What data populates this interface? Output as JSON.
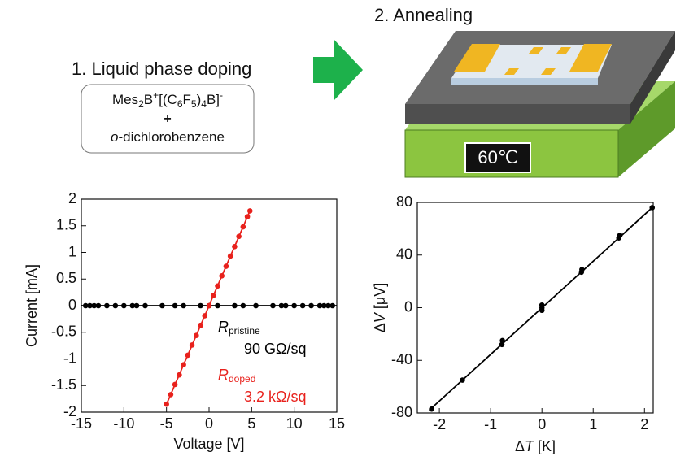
{
  "diagram": {
    "step1": "1. Liquid phase doping",
    "step2": "2. Annealing",
    "reagent": [
      "Mes",
      "2",
      "B",
      "+",
      "[(C",
      "6",
      "F",
      "5",
      ")",
      "4",
      "B]",
      "-"
    ],
    "plus": "+",
    "solvent": [
      "o",
      "-dichlorobenzene"
    ],
    "temperature": "60℃"
  },
  "chart_data": [
    {
      "type": "scatter",
      "xlabel": "Voltage [V]",
      "ylabel": "Current [mA]",
      "xlim": [
        -15,
        15
      ],
      "xticks": [
        -15,
        -10,
        -5,
        0,
        5,
        10,
        15
      ],
      "ylim": [
        -2,
        2
      ],
      "yticks": [
        -2,
        -1.5,
        -1,
        -0.5,
        0,
        0.5,
        1,
        1.5,
        2
      ],
      "series": [
        {
          "mode": "lines",
          "color": "#000000",
          "x": [
            -15,
            15
          ],
          "values": [
            0,
            0
          ]
        },
        {
          "mode": "markers",
          "color": "#000000",
          "x": [
            -14.5,
            -14,
            -13.5,
            -13,
            -12,
            -11,
            -10,
            -9,
            -8.5,
            -7.5,
            -5.5,
            -4,
            -3,
            -1,
            0,
            1,
            3,
            4,
            5.5,
            7.5,
            8.5,
            9,
            10,
            11,
            12,
            13,
            13.5,
            14,
            14.5
          ],
          "values": [
            0,
            0,
            0,
            0,
            0,
            0,
            0,
            0,
            0,
            0,
            0,
            0,
            0,
            0,
            0,
            0,
            0,
            0,
            0,
            0,
            0,
            0,
            0,
            0,
            0,
            0,
            0,
            0,
            0
          ]
        },
        {
          "mode": "lines+markers",
          "color": "#e8211c",
          "x": [
            -5,
            -4.5,
            -4,
            -3.5,
            -3,
            -2.5,
            -2,
            -1.5,
            -1,
            -0.5,
            0,
            0.5,
            1,
            1.5,
            2,
            2.5,
            3,
            3.5,
            4,
            4.5,
            4.8
          ],
          "values": [
            -1.85,
            -1.67,
            -1.48,
            -1.3,
            -1.11,
            -0.93,
            -0.74,
            -0.56,
            -0.37,
            -0.19,
            0,
            0.19,
            0.37,
            0.56,
            0.74,
            0.93,
            1.11,
            1.3,
            1.48,
            1.67,
            1.78
          ]
        }
      ],
      "annotations": [
        {
          "symbol": "R",
          "subscript": "pristine",
          "value": "90 GΩ/sq",
          "color": "#000000"
        },
        {
          "symbol": "R",
          "subscript": "doped",
          "value": "3.2 kΩ/sq",
          "color": "#e8211c"
        }
      ]
    },
    {
      "type": "scatter",
      "xlabel": [
        "Δ",
        "T",
        " [K]"
      ],
      "ylabel": [
        "Δ",
        "V",
        " [μV]"
      ],
      "xlim": [
        -2.43,
        2.17
      ],
      "xticks": [
        -2,
        -1,
        0,
        1,
        2
      ],
      "ylim": [
        -80,
        80
      ],
      "yticks": [
        -80,
        -40,
        0,
        40,
        80
      ],
      "series": [
        {
          "mode": "lines",
          "color": "#000000",
          "x": [
            -2.2,
            2.15
          ],
          "values": [
            -78,
            76
          ]
        },
        {
          "mode": "markers",
          "color": "#000000",
          "x": [
            -2.15,
            -1.55,
            -0.78,
            -0.77,
            0,
            0,
            0,
            0.77,
            0.78,
            1.5,
            1.52,
            2.15
          ],
          "values": [
            -77,
            -55,
            -28,
            -25,
            -2,
            0,
            2,
            27,
            29,
            53,
            55,
            76
          ]
        }
      ]
    }
  ]
}
